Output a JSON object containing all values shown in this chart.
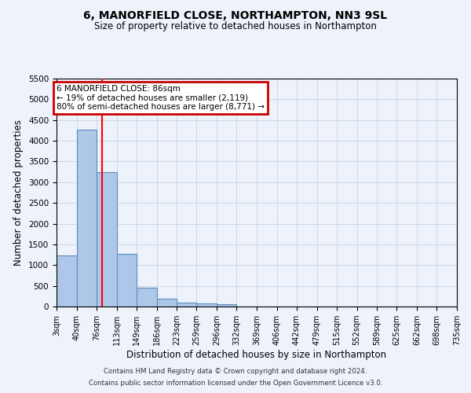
{
  "title1": "6, MANORFIELD CLOSE, NORTHAMPTON, NN3 9SL",
  "title2": "Size of property relative to detached houses in Northampton",
  "xlabel": "Distribution of detached houses by size in Northampton",
  "ylabel": "Number of detached properties",
  "footer1": "Contains HM Land Registry data © Crown copyright and database right 2024.",
  "footer2": "Contains public sector information licensed under the Open Government Licence v3.0.",
  "annotation_title": "6 MANORFIELD CLOSE: 86sqm",
  "annotation_line1": "← 19% of detached houses are smaller (2,119)",
  "annotation_line2": "80% of semi-detached houses are larger (8,771) →",
  "bar_color": "#aec6e8",
  "bar_edge_color": "#5a8fbf",
  "red_line_x": 86,
  "bin_edges": [
    3,
    40,
    76,
    113,
    149,
    186,
    223,
    259,
    296,
    332,
    369,
    406,
    442,
    479,
    515,
    552,
    589,
    625,
    662,
    698,
    735
  ],
  "bar_heights": [
    1230,
    4270,
    3250,
    1280,
    460,
    190,
    100,
    80,
    50,
    0,
    0,
    0,
    0,
    0,
    0,
    0,
    0,
    0,
    0,
    0
  ],
  "ylim": [
    0,
    5500
  ],
  "yticks": [
    0,
    500,
    1000,
    1500,
    2000,
    2500,
    3000,
    3500,
    4000,
    4500,
    5000,
    5500
  ],
  "background_color": "#eef2fa",
  "annotation_box_color": "#ffffff",
  "annotation_box_edge_color": "#cc0000",
  "grid_color": "#c8d4e8"
}
